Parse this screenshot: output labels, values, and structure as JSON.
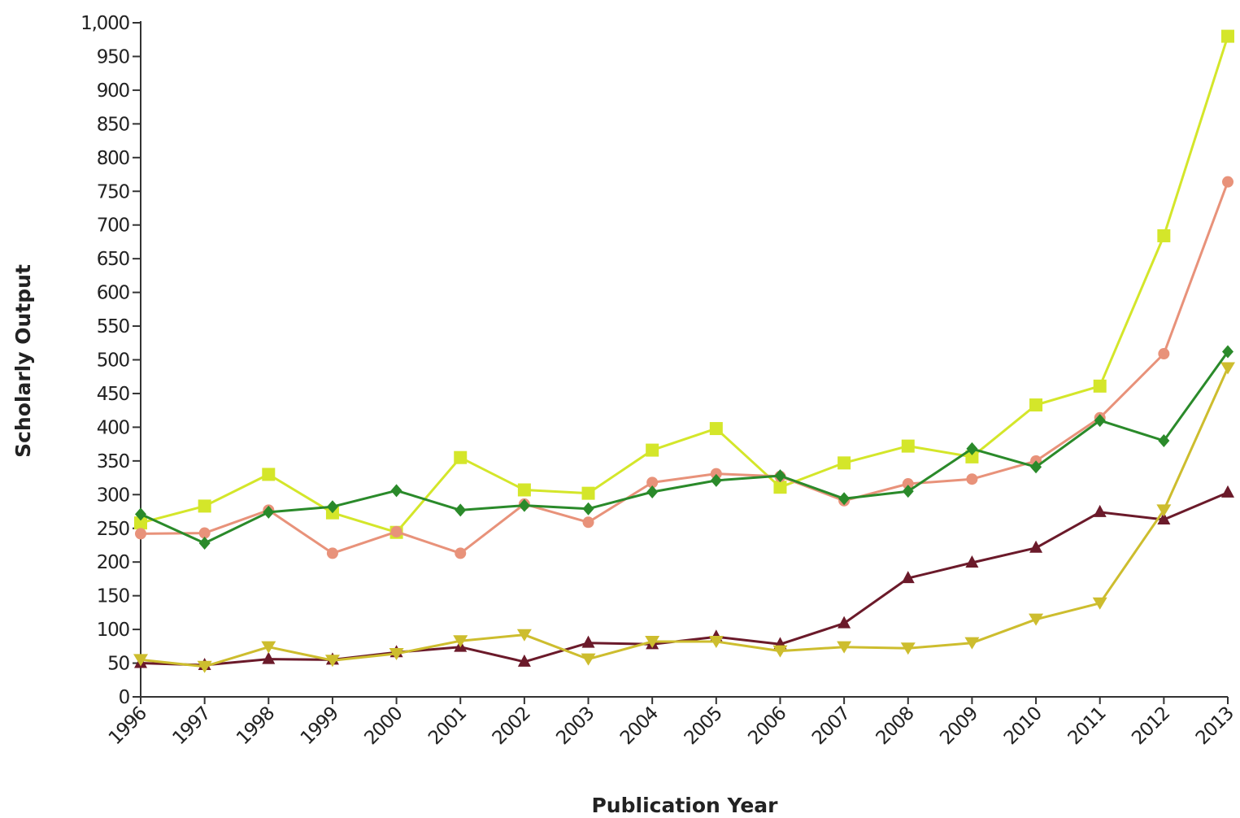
{
  "chart_data": {
    "type": "line",
    "title": "",
    "xlabel": "Publication Year",
    "ylabel": "Scholarly Output",
    "x": [
      "1996",
      "1997",
      "1998",
      "1999",
      "2000",
      "2001",
      "2002",
      "2003",
      "2004",
      "2005",
      "2006",
      "2007",
      "2008",
      "2009",
      "2010",
      "2011",
      "2012",
      "2013"
    ],
    "ylim": [
      0,
      1000
    ],
    "yticks": [
      0,
      50,
      100,
      150,
      200,
      250,
      300,
      350,
      400,
      450,
      500,
      550,
      600,
      650,
      700,
      750,
      800,
      850,
      900,
      950,
      1000
    ],
    "ytick_labels": [
      "0",
      "50",
      "100",
      "150",
      "200",
      "250",
      "300",
      "350",
      "400",
      "450",
      "500",
      "550",
      "600",
      "650",
      "700",
      "750",
      "800",
      "850",
      "900",
      "950",
      "1,000"
    ],
    "grid": false,
    "legend": false,
    "series": [
      {
        "color": "#d4e62a",
        "marker": "square",
        "values": [
          258,
          283,
          330,
          273,
          244,
          355,
          307,
          302,
          366,
          398,
          311,
          347,
          372,
          356,
          433,
          461,
          684,
          980
        ]
      },
      {
        "color": "#e8927a",
        "marker": "circle",
        "values": [
          242,
          243,
          277,
          213,
          245,
          213,
          286,
          259,
          318,
          331,
          327,
          291,
          316,
          323,
          350,
          414,
          509,
          764
        ]
      },
      {
        "color": "#2a8a2a",
        "marker": "diamond",
        "values": [
          271,
          228,
          274,
          282,
          306,
          277,
          284,
          279,
          304,
          321,
          328,
          294,
          305,
          368,
          341,
          410,
          380,
          512
        ]
      },
      {
        "color": "#6b1a2a",
        "marker": "triangle-up",
        "values": [
          50,
          47,
          56,
          55,
          66,
          74,
          52,
          80,
          78,
          89,
          78,
          109,
          176,
          199,
          221,
          274,
          263,
          303
        ]
      },
      {
        "color": "#cdbd2e",
        "marker": "triangle-down",
        "values": [
          55,
          45,
          74,
          54,
          64,
          83,
          92,
          56,
          82,
          82,
          68,
          74,
          72,
          80,
          115,
          139,
          277,
          488
        ]
      }
    ]
  }
}
